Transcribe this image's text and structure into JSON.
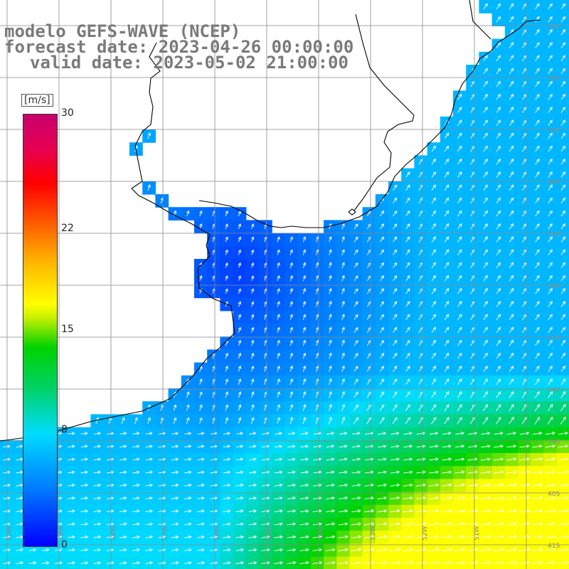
{
  "title": {
    "line1": "modelo GEFS-WAVE (NCEP)",
    "line2": "forecast date: 2023-04-26 00:00:00",
    "line3": "valid date: 2023-05-02 21:00:00"
  },
  "colorbar": {
    "unit": "[m/s]",
    "ticks": [
      {
        "label": "30",
        "value": 30
      },
      {
        "label": "22",
        "value": 22
      },
      {
        "label": "15",
        "value": 15
      },
      {
        "label": "8",
        "value": 8
      },
      {
        "label": "0",
        "value": 0
      }
    ],
    "range": [
      0,
      30
    ]
  },
  "axes": {
    "lon_labels": [
      "60W",
      "59W",
      "58W",
      "57W",
      "56W",
      "55W",
      "54W",
      "53W",
      "52W",
      "51W"
    ],
    "lat_labels": [
      "31S",
      "32S",
      "33S",
      "34S",
      "35S",
      "36S",
      "37S",
      "38S",
      "39S",
      "40S",
      "41S"
    ],
    "lon_range": [
      -61,
      -50
    ],
    "lat_range": [
      -41.5,
      -30.5
    ]
  },
  "colors": {
    "text_gray": "#7a7a7a",
    "land": "#ffffff",
    "coast": "#000000",
    "grid": "#888888",
    "arrow": "#ffffff"
  }
}
